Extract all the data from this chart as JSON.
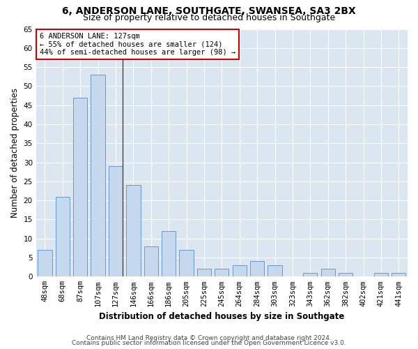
{
  "title1": "6, ANDERSON LANE, SOUTHGATE, SWANSEA, SA3 2BX",
  "title2": "Size of property relative to detached houses in Southgate",
  "xlabel": "Distribution of detached houses by size in Southgate",
  "ylabel": "Number of detached properties",
  "categories": [
    "48sqm",
    "68sqm",
    "87sqm",
    "107sqm",
    "127sqm",
    "146sqm",
    "166sqm",
    "186sqm",
    "205sqm",
    "225sqm",
    "245sqm",
    "264sqm",
    "284sqm",
    "303sqm",
    "323sqm",
    "343sqm",
    "362sqm",
    "382sqm",
    "402sqm",
    "421sqm",
    "441sqm"
  ],
  "values": [
    7,
    21,
    47,
    53,
    29,
    24,
    8,
    12,
    7,
    2,
    2,
    3,
    4,
    3,
    0,
    1,
    2,
    1,
    0,
    1,
    1
  ],
  "bar_color": "#c5d8ee",
  "bar_edge_color": "#5b8cc8",
  "highlight_index": 4,
  "highlight_line_color": "#333333",
  "background_color": "#ffffff",
  "plot_bg_color": "#dce6f1",
  "annotation_text": "6 ANDERSON LANE: 127sqm\n← 55% of detached houses are smaller (124)\n44% of semi-detached houses are larger (98) →",
  "annotation_box_color": "white",
  "annotation_box_edge_color": "#cc0000",
  "ylim": [
    0,
    65
  ],
  "yticks": [
    0,
    5,
    10,
    15,
    20,
    25,
    30,
    35,
    40,
    45,
    50,
    55,
    60,
    65
  ],
  "footer1": "Contains HM Land Registry data © Crown copyright and database right 2024.",
  "footer2": "Contains public sector information licensed under the Open Government Licence v3.0.",
  "title_fontsize": 10,
  "subtitle_fontsize": 9,
  "axis_label_fontsize": 8.5,
  "tick_fontsize": 7.5,
  "annotation_fontsize": 7.5,
  "footer_fontsize": 6.5
}
